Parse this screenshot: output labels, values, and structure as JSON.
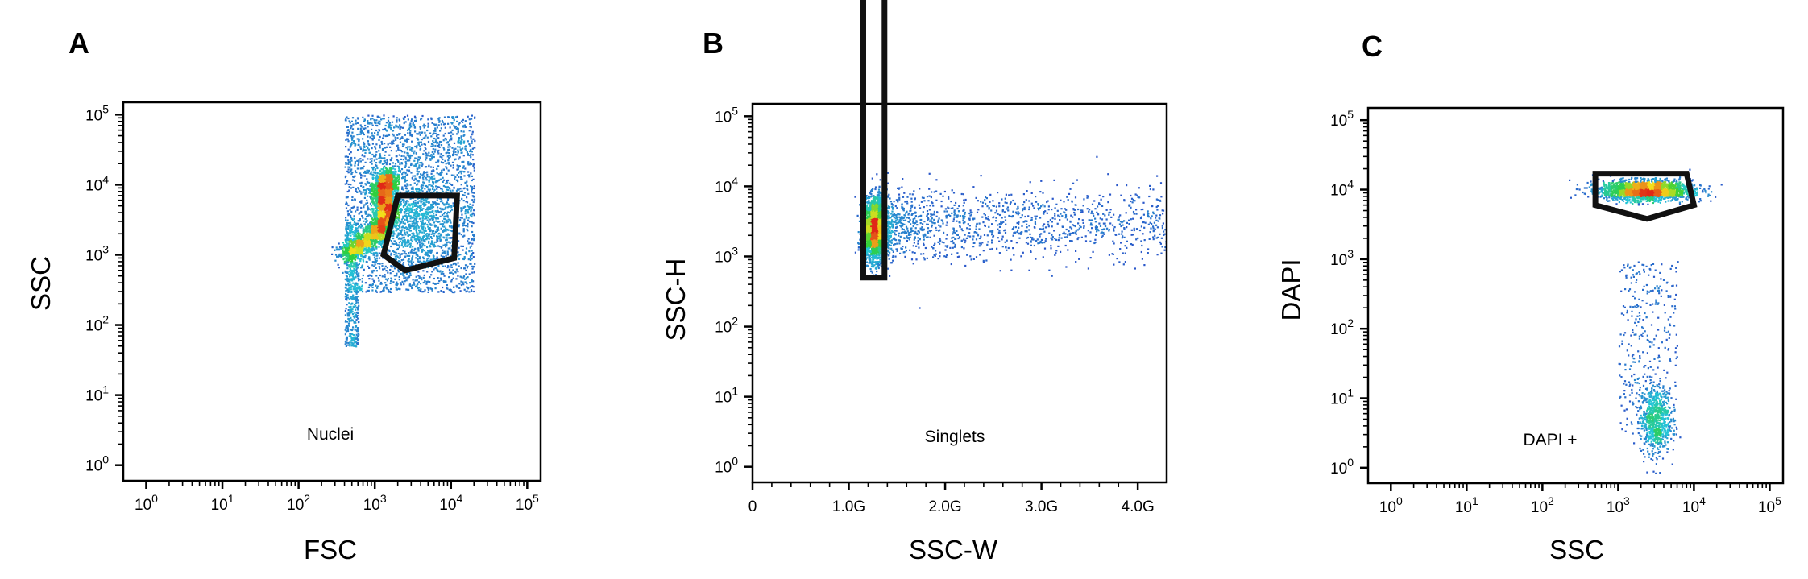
{
  "chart_data": [
    {
      "panel": "A",
      "type": "scatter",
      "xlabel": "FSC",
      "ylabel": "SSC",
      "xscale": "log",
      "yscale": "log",
      "xlim": [
        0.5,
        150000
      ],
      "ylim": [
        0.6,
        150000
      ],
      "x_ticks": [
        {
          "base": "10",
          "exp": "0"
        },
        {
          "base": "10",
          "exp": "1"
        },
        {
          "base": "10",
          "exp": "2"
        },
        {
          "base": "10",
          "exp": "3"
        },
        {
          "base": "10",
          "exp": "4"
        },
        {
          "base": "10",
          "exp": "5"
        }
      ],
      "y_ticks": [
        {
          "base": "10",
          "exp": "0"
        },
        {
          "base": "10",
          "exp": "1"
        },
        {
          "base": "10",
          "exp": "2"
        },
        {
          "base": "10",
          "exp": "3"
        },
        {
          "base": "10",
          "exp": "4"
        },
        {
          "base": "10",
          "exp": "5"
        }
      ],
      "gate": {
        "name": "Nuclei",
        "polygon": [
          [
            2000,
            7000
          ],
          [
            12000,
            7000
          ],
          [
            11000,
            900
          ],
          [
            2500,
            600
          ],
          [
            1300,
            1000
          ]
        ]
      },
      "populations": [
        {
          "shape": "ridge",
          "n": 3500,
          "path": [
            [
              400,
              1000
            ],
            [
              1000,
              2000
            ],
            [
              1500,
              4000
            ],
            [
              1200,
              8000
            ],
            [
              1500,
              14000
            ]
          ],
          "spread": 0.07
        },
        {
          "shape": "box",
          "n": 2600,
          "xrange": [
            400,
            20000
          ],
          "yrange": [
            300,
            100000
          ]
        },
        {
          "shape": "box",
          "n": 500,
          "xrange": [
            400,
            600
          ],
          "yrange": [
            50,
            3000
          ]
        },
        {
          "shape": "blob",
          "n": 600,
          "center": [
            4000,
            3500
          ],
          "sx": 0.25,
          "sy": 0.3
        }
      ],
      "grid": false
    },
    {
      "panel": "B",
      "type": "scatter",
      "xlabel": "SSC-W",
      "ylabel": "SSC-H",
      "xscale": "linear",
      "yscale": "log",
      "xlim": [
        0,
        4300000000
      ],
      "ylim": [
        0.6,
        150000
      ],
      "x_ticks": [
        {
          "base": "0",
          "exp": "",
          "v": 0
        },
        {
          "base": "1.0G",
          "exp": "",
          "v": 1000000000
        },
        {
          "base": "2.0G",
          "exp": "",
          "v": 2000000000
        },
        {
          "base": "3.0G",
          "exp": "",
          "v": 3000000000
        },
        {
          "base": "4.0G",
          "exp": "",
          "v": 4000000000
        }
      ],
      "y_ticks": [
        {
          "base": "10",
          "exp": "0"
        },
        {
          "base": "10",
          "exp": "1"
        },
        {
          "base": "10",
          "exp": "2"
        },
        {
          "base": "10",
          "exp": "3"
        },
        {
          "base": "10",
          "exp": "4"
        },
        {
          "base": "10",
          "exp": "5"
        }
      ],
      "gate": {
        "name": "Singlets",
        "polygon": [
          [
            1150000000,
            8500000
          ],
          [
            1370000000,
            8500000
          ],
          [
            1370000000,
            500
          ],
          [
            1150000000,
            500
          ]
        ]
      },
      "populations": [
        {
          "shape": "blob",
          "n": 2600,
          "center": [
            1260000000,
            2500
          ],
          "sx": 60000000,
          "sy": 0.22,
          "xlinear": true
        },
        {
          "shape": "trail",
          "n": 1400,
          "xrange": [
            1300000000,
            4300000000
          ],
          "center_y": 3000,
          "sy": 0.25
        }
      ],
      "grid": false
    },
    {
      "panel": "C",
      "type": "scatter",
      "xlabel": "SSC",
      "ylabel": "DAPI",
      "xscale": "log",
      "yscale": "log",
      "xlim": [
        0.5,
        150000
      ],
      "ylim": [
        0.6,
        150000
      ],
      "x_ticks": [
        {
          "base": "10",
          "exp": "0"
        },
        {
          "base": "10",
          "exp": "1"
        },
        {
          "base": "10",
          "exp": "2"
        },
        {
          "base": "10",
          "exp": "3"
        },
        {
          "base": "10",
          "exp": "4"
        },
        {
          "base": "10",
          "exp": "5"
        }
      ],
      "y_ticks": [
        {
          "base": "10",
          "exp": "0"
        },
        {
          "base": "10",
          "exp": "1"
        },
        {
          "base": "10",
          "exp": "2"
        },
        {
          "base": "10",
          "exp": "3"
        },
        {
          "base": "10",
          "exp": "4"
        },
        {
          "base": "10",
          "exp": "5"
        }
      ],
      "gate": {
        "name": "DAPI +",
        "polygon": [
          [
            500,
            17000
          ],
          [
            8000,
            17000
          ],
          [
            10000,
            6000
          ],
          [
            2400,
            3800
          ],
          [
            500,
            6000
          ]
        ]
      },
      "populations": [
        {
          "shape": "blob",
          "n": 2200,
          "center": [
            2300,
            10000
          ],
          "sx": 0.3,
          "sy": 0.07
        },
        {
          "shape": "blob",
          "n": 700,
          "center": [
            3000,
            5
          ],
          "sx": 0.1,
          "sy": 0.25
        },
        {
          "shape": "box",
          "n": 350,
          "xrange": [
            1000,
            6000
          ],
          "yrange": [
            3,
            1000
          ]
        }
      ],
      "grid": false
    }
  ],
  "colors": {
    "density_low": "#2b48c8",
    "density_mid1": "#24c7d6",
    "density_mid2": "#2fcf3a",
    "density_mid3": "#f2e21b",
    "density_high": "#e02818",
    "gate": "#111111",
    "axis": "#000000"
  }
}
